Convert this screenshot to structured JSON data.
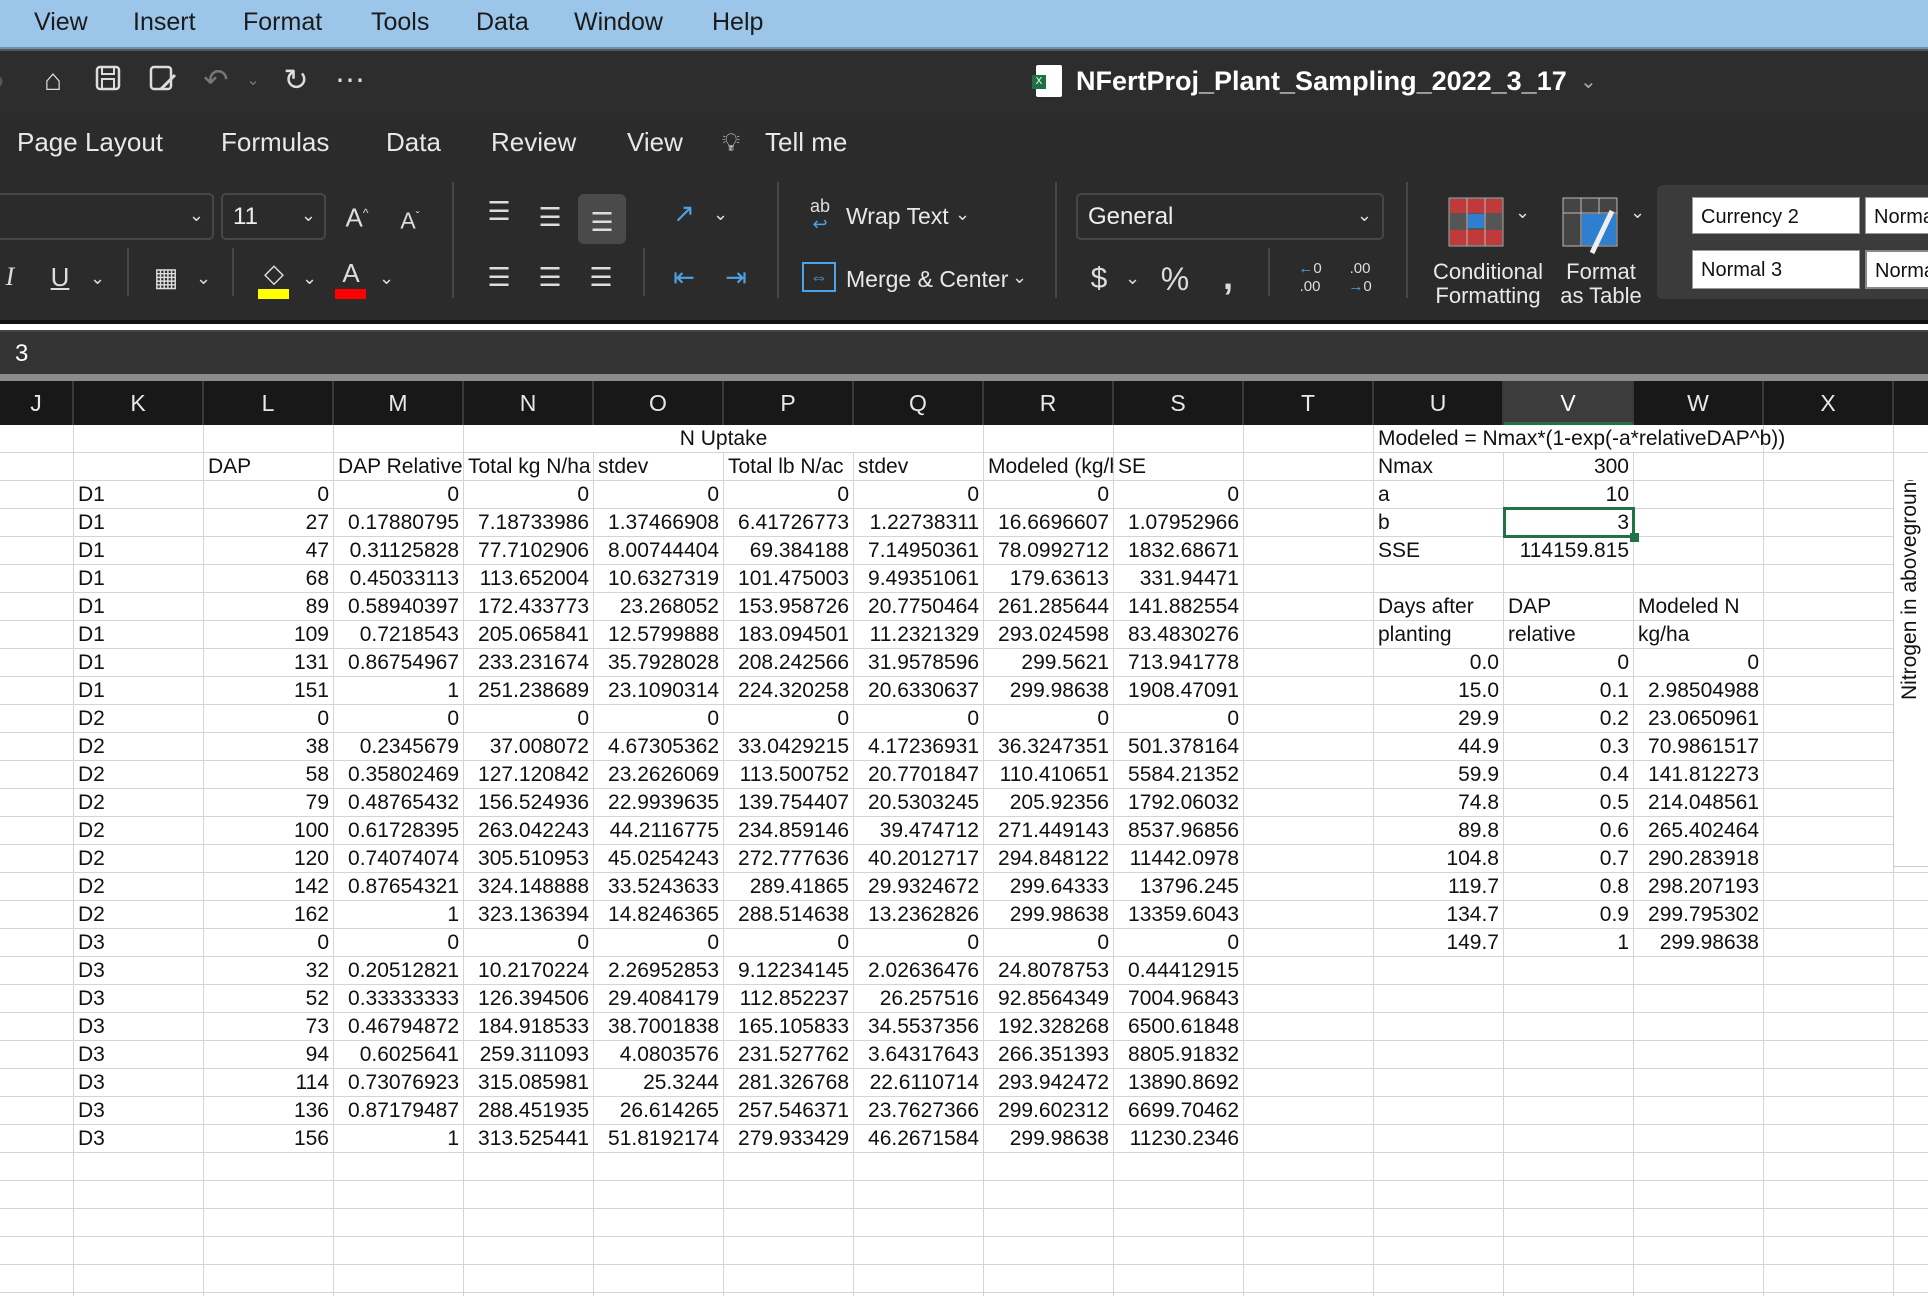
{
  "menubar": {
    "items": [
      "View",
      "Insert",
      "Format",
      "Tools",
      "Data",
      "Window",
      "Help"
    ]
  },
  "titlebar": {
    "title": "NFertProj_Plant_Sampling_2022_3_17",
    "icons": [
      "home-icon",
      "save-icon",
      "save-as-icon",
      "undo-icon",
      "redo-icon",
      "more-icon"
    ]
  },
  "ribbon_tabs": {
    "items": [
      "Page Layout",
      "Formulas",
      "Data",
      "Review",
      "View"
    ],
    "tell_me": "Tell me"
  },
  "ribbon": {
    "font_size": "11",
    "wrap_text": "Wrap Text",
    "merge_center": "Merge & Center",
    "number_format": "General",
    "conditional_formatting": [
      "Conditional",
      "Formatting"
    ],
    "format_as_table": [
      "Format",
      "as Table"
    ],
    "styles": [
      "Currency 2",
      "Normal",
      "Normal 3",
      "Normal"
    ],
    "fill_color": "#ffff00",
    "font_color": "#ff0000"
  },
  "formula_bar": {
    "value": "3"
  },
  "sheet": {
    "columns": [
      "J",
      "K",
      "L",
      "M",
      "N",
      "O",
      "P",
      "Q",
      "R",
      "S",
      "T",
      "U",
      "V",
      "W",
      "X"
    ],
    "selected_column": "V",
    "selected_cell": "V4",
    "merged": {
      "n_uptake": "N Uptake",
      "model_formula": "Modeled = Nmax*(1-exp(-a*relativeDAP^b))"
    },
    "rows": [
      [
        "",
        "",
        "",
        "",
        "",
        "",
        "",
        "",
        "",
        "",
        "",
        "",
        "",
        "",
        ""
      ],
      [
        "",
        "",
        "DAP",
        "DAP Relative",
        "Total kg N/ha",
        "stdev",
        "Total lb N/ac",
        "stdev",
        "Modeled (kg/ha)",
        "SE",
        "",
        "Nmax",
        "300",
        "",
        ""
      ],
      [
        "",
        "D1",
        "0",
        "0",
        "0",
        "0",
        "0",
        "0",
        "0",
        "0",
        "",
        "a",
        "10",
        "",
        ""
      ],
      [
        "",
        "D1",
        "27",
        "0.17880795",
        "7.18733986",
        "1.37466908",
        "6.41726773",
        "1.22738311",
        "16.6696607",
        "1.07952966",
        "",
        "b",
        "3",
        "",
        ""
      ],
      [
        "",
        "D1",
        "47",
        "0.31125828",
        "77.7102906",
        "8.00744404",
        "69.384188",
        "7.14950361",
        "78.0992712",
        "1832.68671",
        "",
        "SSE",
        "114159.815",
        "",
        ""
      ],
      [
        "",
        "D1",
        "68",
        "0.45033113",
        "113.652004",
        "10.6327319",
        "101.475003",
        "9.49351061",
        "179.63613",
        "331.94471",
        "",
        "",
        "",
        "",
        ""
      ],
      [
        "",
        "D1",
        "89",
        "0.58940397",
        "172.433773",
        "23.268052",
        "153.958726",
        "20.7750464",
        "261.285644",
        "141.882554",
        "",
        "Days after",
        "DAP",
        "Modeled N",
        ""
      ],
      [
        "",
        "D1",
        "109",
        "0.7218543",
        "205.065841",
        "12.5799888",
        "183.094501",
        "11.2321329",
        "293.024598",
        "83.4830276",
        "",
        "planting",
        "relative",
        "kg/ha",
        ""
      ],
      [
        "",
        "D1",
        "131",
        "0.86754967",
        "233.231674",
        "35.7928028",
        "208.242566",
        "31.9578596",
        "299.5621",
        "713.941778",
        "",
        "0.0",
        "0",
        "0",
        ""
      ],
      [
        "",
        "D1",
        "151",
        "1",
        "251.238689",
        "23.1090314",
        "224.320258",
        "20.6330637",
        "299.98638",
        "1908.47091",
        "",
        "15.0",
        "0.1",
        "2.98504988",
        ""
      ],
      [
        "",
        "D2",
        "0",
        "0",
        "0",
        "0",
        "0",
        "0",
        "0",
        "0",
        "",
        "29.9",
        "0.2",
        "23.0650961",
        ""
      ],
      [
        "",
        "D2",
        "38",
        "0.2345679",
        "37.008072",
        "4.67305362",
        "33.0429215",
        "4.17236931",
        "36.3247351",
        "501.378164",
        "",
        "44.9",
        "0.3",
        "70.9861517",
        ""
      ],
      [
        "",
        "D2",
        "58",
        "0.35802469",
        "127.120842",
        "23.2626069",
        "113.500752",
        "20.7701847",
        "110.410651",
        "5584.21352",
        "",
        "59.9",
        "0.4",
        "141.812273",
        ""
      ],
      [
        "",
        "D2",
        "79",
        "0.48765432",
        "156.524936",
        "22.9939635",
        "139.754407",
        "20.5303245",
        "205.92356",
        "1792.06032",
        "",
        "74.8",
        "0.5",
        "214.048561",
        ""
      ],
      [
        "",
        "D2",
        "100",
        "0.61728395",
        "263.042243",
        "44.2116775",
        "234.859146",
        "39.474712",
        "271.449143",
        "8537.96856",
        "",
        "89.8",
        "0.6",
        "265.402464",
        ""
      ],
      [
        "",
        "D2",
        "120",
        "0.74074074",
        "305.510953",
        "45.0254243",
        "272.777636",
        "40.2012717",
        "294.848122",
        "11442.0978",
        "",
        "104.8",
        "0.7",
        "290.283918",
        ""
      ],
      [
        "",
        "D2",
        "142",
        "0.87654321",
        "324.148888",
        "33.5243633",
        "289.41865",
        "29.9324672",
        "299.64333",
        "13796.245",
        "",
        "119.7",
        "0.8",
        "298.207193",
        ""
      ],
      [
        "",
        "D2",
        "162",
        "1",
        "323.136394",
        "14.8246365",
        "288.514638",
        "13.2362826",
        "299.98638",
        "13359.6043",
        "",
        "134.7",
        "0.9",
        "299.795302",
        ""
      ],
      [
        "",
        "D3",
        "0",
        "0",
        "0",
        "0",
        "0",
        "0",
        "0",
        "0",
        "",
        "149.7",
        "1",
        "299.98638",
        ""
      ],
      [
        "",
        "D3",
        "32",
        "0.20512821",
        "10.2170224",
        "2.26952853",
        "9.12234145",
        "2.02636476",
        "24.8078753",
        "0.44412915",
        "",
        "",
        "",
        "",
        ""
      ],
      [
        "",
        "D3",
        "52",
        "0.33333333",
        "126.394506",
        "29.4084179",
        "112.852237",
        "26.257516",
        "92.8564349",
        "7004.96843",
        "",
        "",
        "",
        "",
        ""
      ],
      [
        "",
        "D3",
        "73",
        "0.46794872",
        "184.918533",
        "38.7001838",
        "165.105833",
        "34.5537356",
        "192.328268",
        "6500.61848",
        "",
        "",
        "",
        "",
        ""
      ],
      [
        "",
        "D3",
        "94",
        "0.6025641",
        "259.311093",
        "4.0803576",
        "231.527762",
        "3.64317643",
        "266.351393",
        "8805.91832",
        "",
        "",
        "",
        "",
        ""
      ],
      [
        "",
        "D3",
        "114",
        "0.73076923",
        "315.085981",
        "25.3244",
        "281.326768",
        "22.6110714",
        "293.942472",
        "13890.8692",
        "",
        "",
        "",
        "",
        ""
      ],
      [
        "",
        "D3",
        "136",
        "0.87179487",
        "288.451935",
        "26.614265",
        "257.546371",
        "23.7627366",
        "299.602312",
        "6699.70462",
        "",
        "",
        "",
        "",
        ""
      ],
      [
        "",
        "D3",
        "156",
        "1",
        "313.525441",
        "51.8192174",
        "279.933429",
        "46.2671584",
        "299.98638",
        "11230.2346",
        "",
        "",
        "",
        "",
        ""
      ]
    ]
  },
  "chart": {
    "axis_label": "Nitrogen in aboveground"
  }
}
